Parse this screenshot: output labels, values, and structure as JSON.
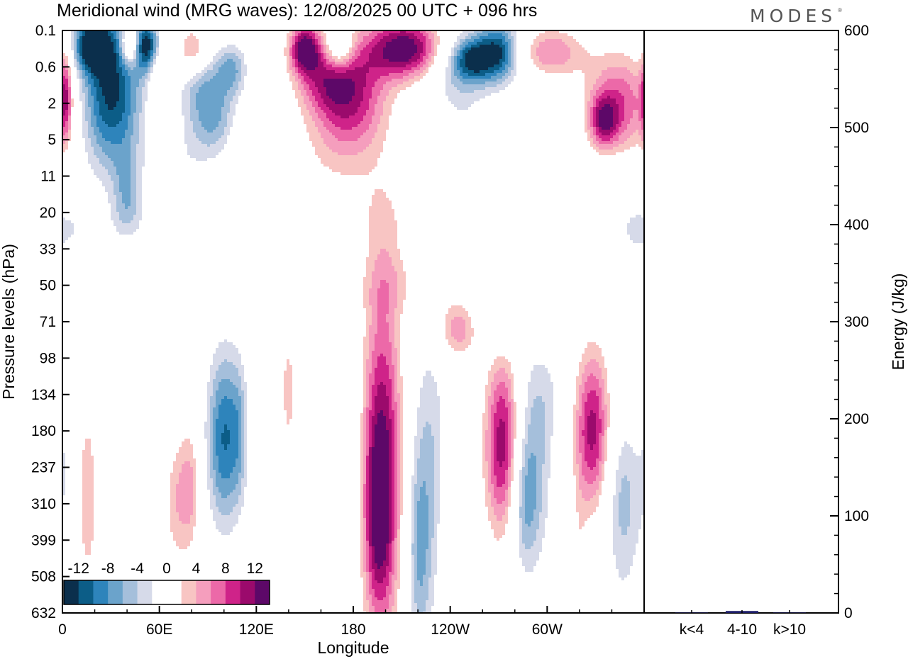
{
  "title": "Meridional wind (MRG waves):  12/08/2025  00 UTC  + 096 hrs",
  "brand": "MODES",
  "brand_mark": "®",
  "colors": {
    "neg": [
      "#0b2f4c",
      "#0c5d87",
      "#2e84bb",
      "#6ba3cb",
      "#a5bfdb",
      "#d6dae9"
    ],
    "pos": [
      "#f8c5c3",
      "#f59ebd",
      "#ec69a8",
      "#cf2389",
      "#9b0a6c",
      "#5d0868"
    ],
    "bar": "#1a1a66"
  },
  "chart_data": [
    {
      "type": "heatmap",
      "title": "Meridional wind (MRG waves)",
      "xlabel": "Longitude",
      "ylabel": "Pressure levels (hPa)",
      "x_ticks": [
        "0",
        "60E",
        "120E",
        "180",
        "120W",
        "60W"
      ],
      "x_tick_values": [
        0,
        60,
        120,
        180,
        240,
        300
      ],
      "xlim": [
        0,
        360
      ],
      "y_ticks": [
        "0.1",
        "0.6",
        "2",
        "5",
        "11",
        "20",
        "33",
        "50",
        "71",
        "98",
        "134",
        "180",
        "237",
        "310",
        "399",
        "508",
        "632"
      ],
      "colorbar_labels": [
        "-12",
        "-8",
        "-4",
        "0",
        "4",
        "8",
        "12"
      ],
      "colorbar_levels": [
        -14,
        -12,
        -10,
        -8,
        -6,
        -4,
        -2,
        0,
        2,
        4,
        6,
        8,
        10,
        12,
        14
      ],
      "features": [
        {
          "lon": 30,
          "lev": 1.6,
          "sx": 14,
          "sy": 1.6,
          "a": -15
        },
        {
          "lon": 18,
          "lev": 0.4,
          "sx": 8,
          "sy": 0.5,
          "a": -13
        },
        {
          "lon": 40,
          "lev": 4.5,
          "sx": 6,
          "sy": 0.8,
          "a": -6
        },
        {
          "lon": 52,
          "lev": 0.4,
          "sx": 6,
          "sy": 0.5,
          "a": -13
        },
        {
          "lon": 42,
          "lev": 0.4,
          "sx": 4,
          "sy": 0.4,
          "a": 12
        },
        {
          "lon": 80,
          "lev": 0.5,
          "sx": 6,
          "sy": 0.4,
          "a": 7
        },
        {
          "lon": 60,
          "lev": 1.5,
          "sx": 4,
          "sy": 0.8,
          "a": 5
        },
        {
          "lon": 2,
          "lev": 1.8,
          "sx": 3,
          "sy": 1.0,
          "a": 10
        },
        {
          "lon": 90,
          "lev": 1.8,
          "sx": 12,
          "sy": 0.7,
          "a": -9
        },
        {
          "lon": 105,
          "lev": 1.0,
          "sx": 7,
          "sy": 0.5,
          "a": -7
        },
        {
          "lon": 95,
          "lev": 2.8,
          "sx": 12,
          "sy": 0.5,
          "a": -4
        },
        {
          "lon": 115,
          "lev": 3.0,
          "sx": 8,
          "sy": 0.4,
          "a": 4
        },
        {
          "lon": 78,
          "lev": 3.6,
          "sx": 18,
          "sy": 0.6,
          "a": -3
        },
        {
          "lon": 150,
          "lev": 0.5,
          "sx": 7,
          "sy": 0.5,
          "a": 15
        },
        {
          "lon": 172,
          "lev": 0.5,
          "sx": 6,
          "sy": 0.4,
          "a": -8
        },
        {
          "lon": 213,
          "lev": 0.5,
          "sx": 17,
          "sy": 0.6,
          "a": 16
        },
        {
          "lon": 178,
          "lev": 1.7,
          "sx": 16,
          "sy": 1.1,
          "a": 11
        },
        {
          "lon": 162,
          "lev": 1.4,
          "sx": 12,
          "sy": 0.6,
          "a": 6
        },
        {
          "lon": 170,
          "lev": 3.3,
          "sx": 22,
          "sy": 1.3,
          "a": 3
        },
        {
          "lon": 200,
          "lev": 5.3,
          "sx": 12,
          "sy": 0.8,
          "a": 2.5
        },
        {
          "lon": 244,
          "lev": 1.0,
          "sx": 14,
          "sy": 0.8,
          "a": -7
        },
        {
          "lon": 270,
          "lev": 0.6,
          "sx": 10,
          "sy": 0.6,
          "a": -14
        },
        {
          "lon": 253,
          "lev": 0.8,
          "sx": 8,
          "sy": 0.4,
          "a": -9
        },
        {
          "lon": 302,
          "lev": 0.6,
          "sx": 15,
          "sy": 0.5,
          "a": 8
        },
        {
          "lon": 345,
          "lev": 2.0,
          "sx": 15,
          "sy": 1.0,
          "a": 10
        },
        {
          "lon": 335,
          "lev": 2.5,
          "sx": 6,
          "sy": 0.5,
          "a": 9
        },
        {
          "lon": 300,
          "lev": 2.2,
          "sx": 6,
          "sy": 0.5,
          "a": -3
        },
        {
          "lon": 250,
          "lev": 3.0,
          "sx": 14,
          "sy": 0.8,
          "a": -3
        },
        {
          "lon": 225,
          "lev": 2.2,
          "sx": 6,
          "sy": 0.4,
          "a": 2.5
        },
        {
          "lon": 340,
          "lev": 4.3,
          "sx": 10,
          "sy": 0.5,
          "a": -3
        },
        {
          "lon": 328,
          "lev": 5.8,
          "sx": 8,
          "sy": 0.4,
          "a": 3
        },
        {
          "lon": 5,
          "lev": 5.5,
          "sx": 14,
          "sy": 0.5,
          "a": -2.5
        },
        {
          "lon": 70,
          "lev": 5.3,
          "sx": 32,
          "sy": 0.5,
          "a": -2.5
        },
        {
          "lon": 355,
          "lev": 5.5,
          "sx": 8,
          "sy": 0.5,
          "a": -3
        },
        {
          "lon": 245,
          "lev": 8.2,
          "sx": 10,
          "sy": 0.6,
          "a": 8
        },
        {
          "lon": 210,
          "lev": 7.0,
          "sx": 20,
          "sy": 0.6,
          "a": 3
        },
        {
          "lon": 268,
          "lev": 7.7,
          "sx": 12,
          "sy": 0.8,
          "a": -4
        },
        {
          "lon": 70,
          "lev": 7.6,
          "sx": 16,
          "sy": 0.4,
          "a": 3
        },
        {
          "lon": 85,
          "lev": 6.8,
          "sx": 20,
          "sy": 0.5,
          "a": -2.5
        },
        {
          "lon": 45,
          "lev": 9.2,
          "sx": 7,
          "sy": 1.2,
          "a": 3
        },
        {
          "lon": 100,
          "lev": 11.2,
          "sx": 8,
          "sy": 1.8,
          "a": -12
        },
        {
          "lon": 110,
          "lev": 11.0,
          "sx": 4,
          "sy": 1.5,
          "a": -4
        },
        {
          "lon": 198,
          "lev": 11.8,
          "sx": 9,
          "sy": 3.5,
          "a": 14
        },
        {
          "lon": 195,
          "lev": 13.5,
          "sx": 6,
          "sy": 1.7,
          "a": 6
        },
        {
          "lon": 227,
          "lev": 12.5,
          "sx": 9,
          "sy": 3.2,
          "a": -7
        },
        {
          "lon": 220,
          "lev": 14.5,
          "sx": 5,
          "sy": 1.8,
          "a": -5
        },
        {
          "lon": 273,
          "lev": 11.4,
          "sx": 8,
          "sy": 1.8,
          "a": 15
        },
        {
          "lon": 289,
          "lev": 12.0,
          "sx": 10,
          "sy": 2.2,
          "a": -8
        },
        {
          "lon": 285,
          "lev": 13.0,
          "sx": 6,
          "sy": 1.2,
          "a": -4
        },
        {
          "lon": 328,
          "lev": 11.0,
          "sx": 8,
          "sy": 1.6,
          "a": 13
        },
        {
          "lon": 347,
          "lev": 12.5,
          "sx": 8,
          "sy": 1.5,
          "a": -5
        },
        {
          "lon": 347,
          "lev": 14.5,
          "sx": 10,
          "sy": 2.0,
          "a": -3
        },
        {
          "lon": 16,
          "lev": 12.8,
          "sx": 6,
          "sy": 2.2,
          "a": 5.5
        },
        {
          "lon": 28,
          "lev": 12.5,
          "sx": 5,
          "sy": 2.0,
          "a": -3
        },
        {
          "lon": 72,
          "lev": 12.8,
          "sx": 7,
          "sy": 1.5,
          "a": 6
        },
        {
          "lon": 80,
          "lev": 12.5,
          "sx": 4,
          "sy": 1.2,
          "a": 4
        },
        {
          "lon": 140,
          "lev": 13.0,
          "sx": 3,
          "sy": 4.5,
          "a": 3
        },
        {
          "lon": 160,
          "lev": 11.5,
          "sx": 4,
          "sy": 1.8,
          "a": -3
        },
        {
          "lon": 180,
          "lev": 11.5,
          "sx": 4,
          "sy": 2.5,
          "a": -3
        },
        {
          "lon": 240,
          "lev": 14.0,
          "sx": 8,
          "sy": 2.0,
          "a": 2.5
        },
        {
          "lon": 320,
          "lev": 14.5,
          "sx": 3,
          "sy": 1.5,
          "a": 2.5
        },
        {
          "lon": 2,
          "lev": 11.5,
          "sx": 4,
          "sy": 2.0,
          "a": -3
        },
        {
          "lon": 302,
          "lev": 10.0,
          "sx": 8,
          "sy": 1.0,
          "a": -2.5
        },
        {
          "lon": 140,
          "lev": 9.8,
          "sx": 6,
          "sy": 0.8,
          "a": 3
        },
        {
          "lon": 65,
          "lev": 10.3,
          "sx": 5,
          "sy": 1.0,
          "a": -3
        }
      ]
    },
    {
      "type": "bar",
      "ylabel": "Energy (J/kg)",
      "categories": [
        "k<4",
        "4-10",
        "k>10"
      ],
      "values": [
        0,
        2,
        0
      ],
      "ylim": [
        0,
        600
      ],
      "y_ticks": [
        "0",
        "100",
        "200",
        "300",
        "400",
        "500",
        "600"
      ],
      "y_tick_values": [
        0,
        100,
        200,
        300,
        400,
        500,
        600
      ]
    }
  ]
}
